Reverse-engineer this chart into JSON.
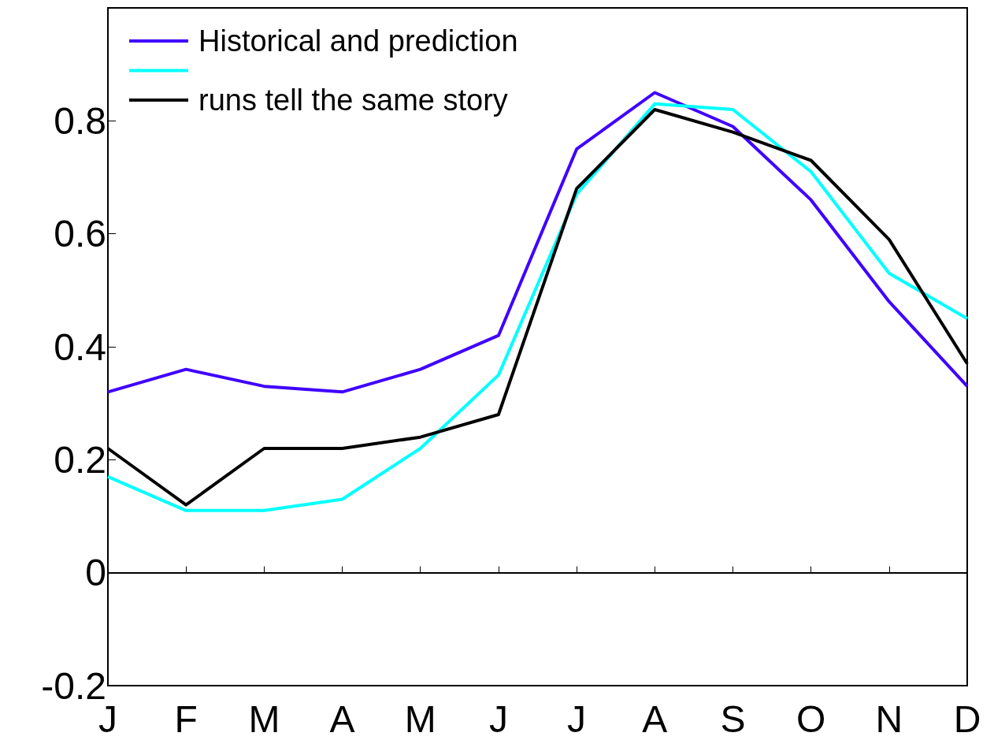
{
  "chart_data": {
    "type": "line",
    "categories": [
      "J",
      "F",
      "M",
      "A",
      "M",
      "J",
      "J",
      "A",
      "S",
      "O",
      "N",
      "D"
    ],
    "series": [
      {
        "name": "Historical and prediction",
        "color": "#3f00ff",
        "values": [
          0.32,
          0.36,
          0.33,
          0.32,
          0.36,
          0.42,
          0.75,
          0.85,
          0.79,
          0.66,
          0.48,
          0.33
        ]
      },
      {
        "color": "#00ffff",
        "values": [
          0.17,
          0.11,
          0.11,
          0.13,
          0.22,
          0.35,
          0.67,
          0.83,
          0.82,
          0.71,
          0.53,
          0.45
        ]
      },
      {
        "name": "runs tell the same story",
        "color": "#000000",
        "values": [
          0.22,
          0.12,
          0.22,
          0.22,
          0.24,
          0.28,
          0.68,
          0.82,
          0.78,
          0.73,
          0.59,
          0.37
        ]
      }
    ],
    "ylim": [
      -0.2,
      1.0
    ],
    "yticks": [
      -0.2,
      0,
      0.2,
      0.4,
      0.6,
      0.8
    ],
    "ref_lines": [
      {
        "axis": "y",
        "value": 0,
        "color": "#000000"
      }
    ],
    "grid": false,
    "legend": "top left",
    "marker": "none",
    "line_style": "solid"
  }
}
